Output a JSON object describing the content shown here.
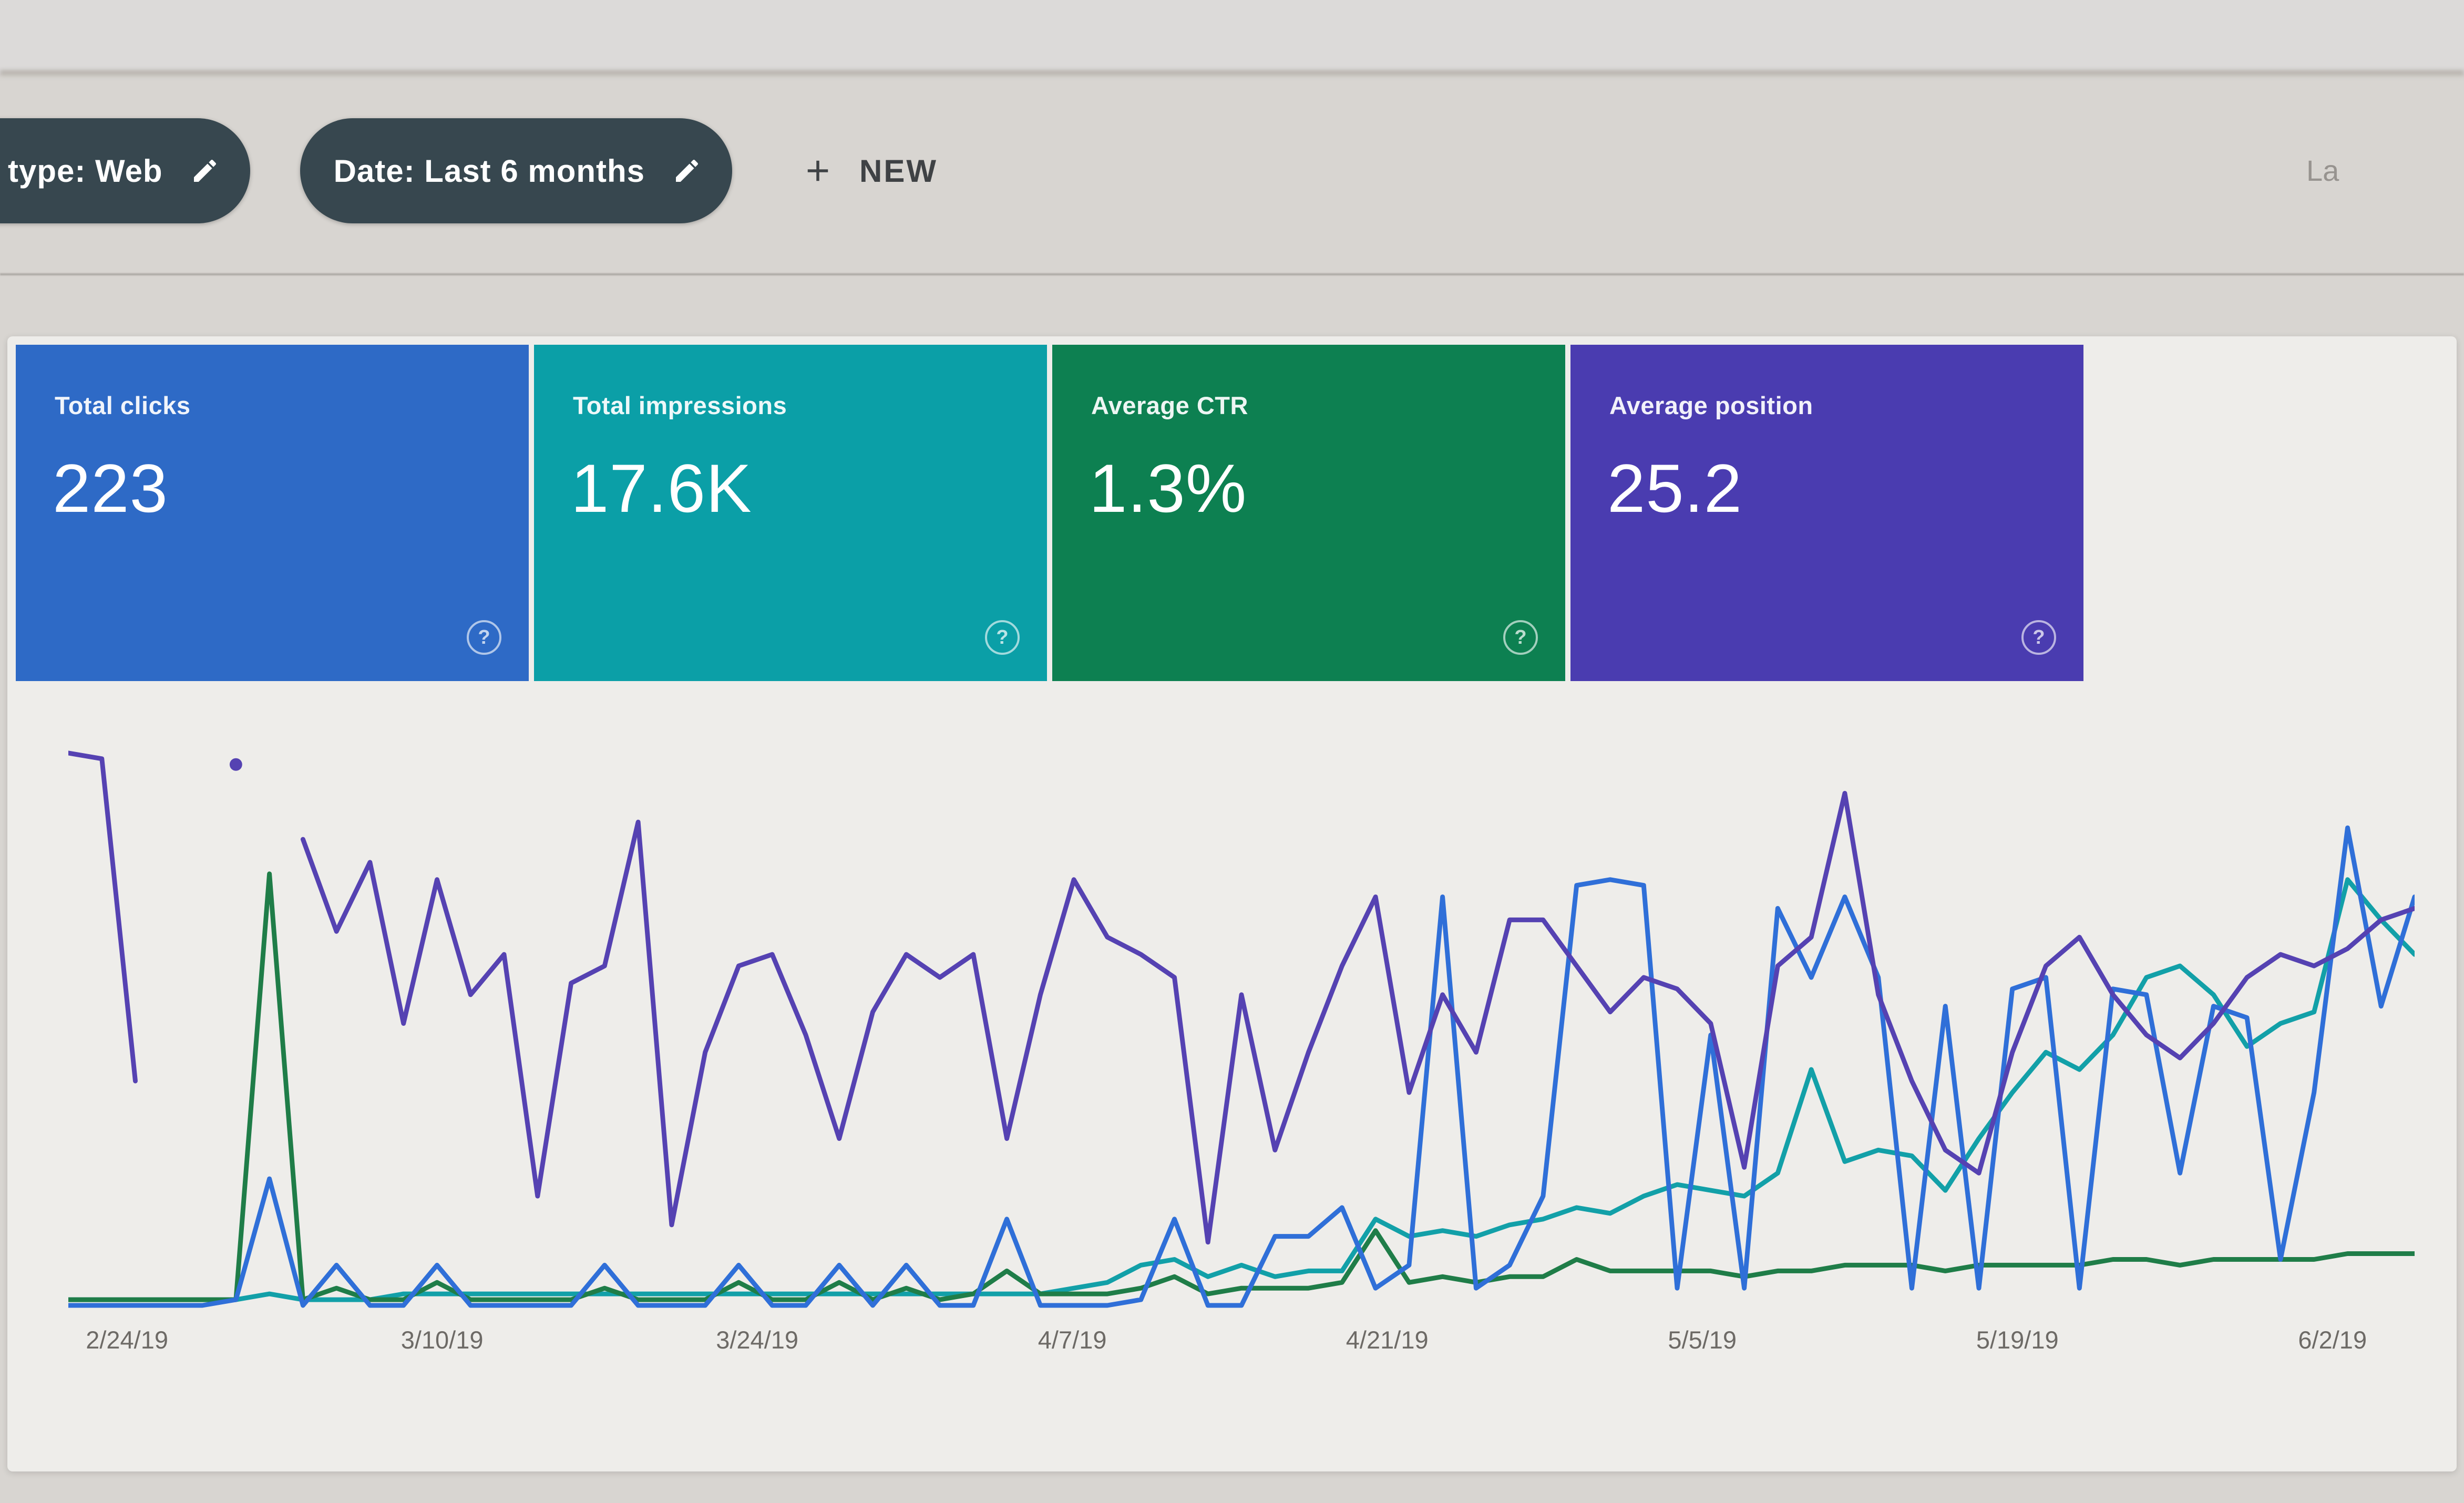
{
  "page": {
    "top_right_partial_text": "La"
  },
  "filter_bar": {
    "chips": [
      {
        "label": "type: Web",
        "icon": "edit-pencil",
        "truncated_left": true
      },
      {
        "label": "Date: Last 6 months",
        "icon": "edit-pencil",
        "truncated_left": false
      }
    ],
    "new_button_label": "NEW",
    "colors": {
      "chip_bg": "#37474f",
      "chip_text": "#ffffff",
      "new_button_text": "#3f4245"
    }
  },
  "icons": {
    "help_glyph": "?"
  },
  "metric_cards": [
    {
      "label": "Total clicks",
      "value": "223",
      "color": "#2e6ac6"
    },
    {
      "label": "Total impressions",
      "value": "17.6K",
      "color": "#0b9fa7"
    },
    {
      "label": "Average CTR",
      "value": "1.3%",
      "color": "#0d8051"
    },
    {
      "label": "Average position",
      "value": "25.2",
      "color": "#4a3cb0"
    }
  ],
  "chart_data": {
    "type": "line",
    "title": "",
    "x_labels": [
      "2/24/19",
      "3/10/19",
      "3/24/19",
      "4/7/19",
      "4/21/19",
      "5/5/19",
      "5/19/19",
      "6/2/19"
    ],
    "x_label_positions_pct": [
      2.5,
      15.93,
      29.36,
      42.79,
      56.21,
      69.64,
      83.07,
      96.5
    ],
    "y_axis_visible": false,
    "y_units": "relative height, percent of plot area (no y-axis rendered in UI)",
    "grid": false,
    "legend": "none (colored metric cards act as legend)",
    "n_points": 71,
    "series": [
      {
        "name": "Total impressions",
        "color": "#12a0a8",
        "values": [
          2,
          2,
          2,
          2,
          2,
          2,
          3,
          2,
          2,
          2,
          3,
          3,
          3,
          3,
          3,
          3,
          3,
          3,
          3,
          3,
          3,
          3,
          3,
          3,
          3,
          3,
          3,
          3,
          3,
          3,
          4,
          5,
          8,
          9,
          6,
          8,
          6,
          7,
          7,
          16,
          13,
          14,
          13,
          15,
          16,
          18,
          17,
          20,
          22,
          21,
          20,
          24,
          42,
          26,
          28,
          27,
          21,
          30,
          38,
          45,
          42,
          48,
          58,
          60,
          55,
          46,
          50,
          52,
          75,
          68,
          62
        ]
      },
      {
        "name": "Average CTR",
        "color": "#1f7d48",
        "values": [
          2,
          2,
          2,
          2,
          2,
          2,
          76,
          2,
          4,
          2,
          2,
          5,
          2,
          2,
          2,
          2,
          4,
          2,
          2,
          2,
          5,
          2,
          2,
          5,
          2,
          4,
          2,
          3,
          7,
          3,
          3,
          3,
          4,
          6,
          3,
          4,
          4,
          4,
          5,
          14,
          5,
          6,
          5,
          6,
          6,
          9,
          7,
          7,
          7,
          7,
          6,
          7,
          7,
          8,
          8,
          8,
          7,
          8,
          8,
          8,
          8,
          9,
          9,
          8,
          9,
          9,
          9,
          9,
          10,
          10,
          10
        ]
      },
      {
        "name": "Total clicks",
        "color": "#2f6fd8",
        "values": [
          1,
          1,
          1,
          1,
          1,
          2,
          23,
          1,
          8,
          1,
          1,
          8,
          1,
          1,
          1,
          1,
          8,
          1,
          1,
          1,
          8,
          1,
          1,
          8,
          1,
          8,
          1,
          1,
          16,
          1,
          1,
          1,
          2,
          16,
          1,
          1,
          13,
          13,
          18,
          4,
          8,
          72,
          4,
          8,
          20,
          74,
          75,
          74,
          4,
          48,
          4,
          70,
          58,
          72,
          58,
          4,
          53,
          4,
          56,
          58,
          4,
          56,
          55,
          24,
          53,
          51,
          9,
          38,
          84,
          53,
          72
        ]
      },
      {
        "name": "Average position",
        "color": "#5542b2",
        "values": [
          97,
          96,
          40,
          null,
          null,
          95,
          null,
          82,
          66,
          78,
          50,
          75,
          55,
          62,
          20,
          57,
          60,
          85,
          15,
          45,
          60,
          62,
          48,
          30,
          52,
          62,
          58,
          62,
          30,
          55,
          75,
          65,
          62,
          58,
          12,
          55,
          28,
          45,
          60,
          72,
          38,
          55,
          45,
          68,
          68,
          60,
          52,
          58,
          56,
          50,
          25,
          60,
          65,
          90,
          55,
          40,
          28,
          24,
          45,
          60,
          65,
          55,
          48,
          44,
          50,
          58,
          62,
          60,
          63,
          68,
          70
        ]
      }
    ]
  }
}
